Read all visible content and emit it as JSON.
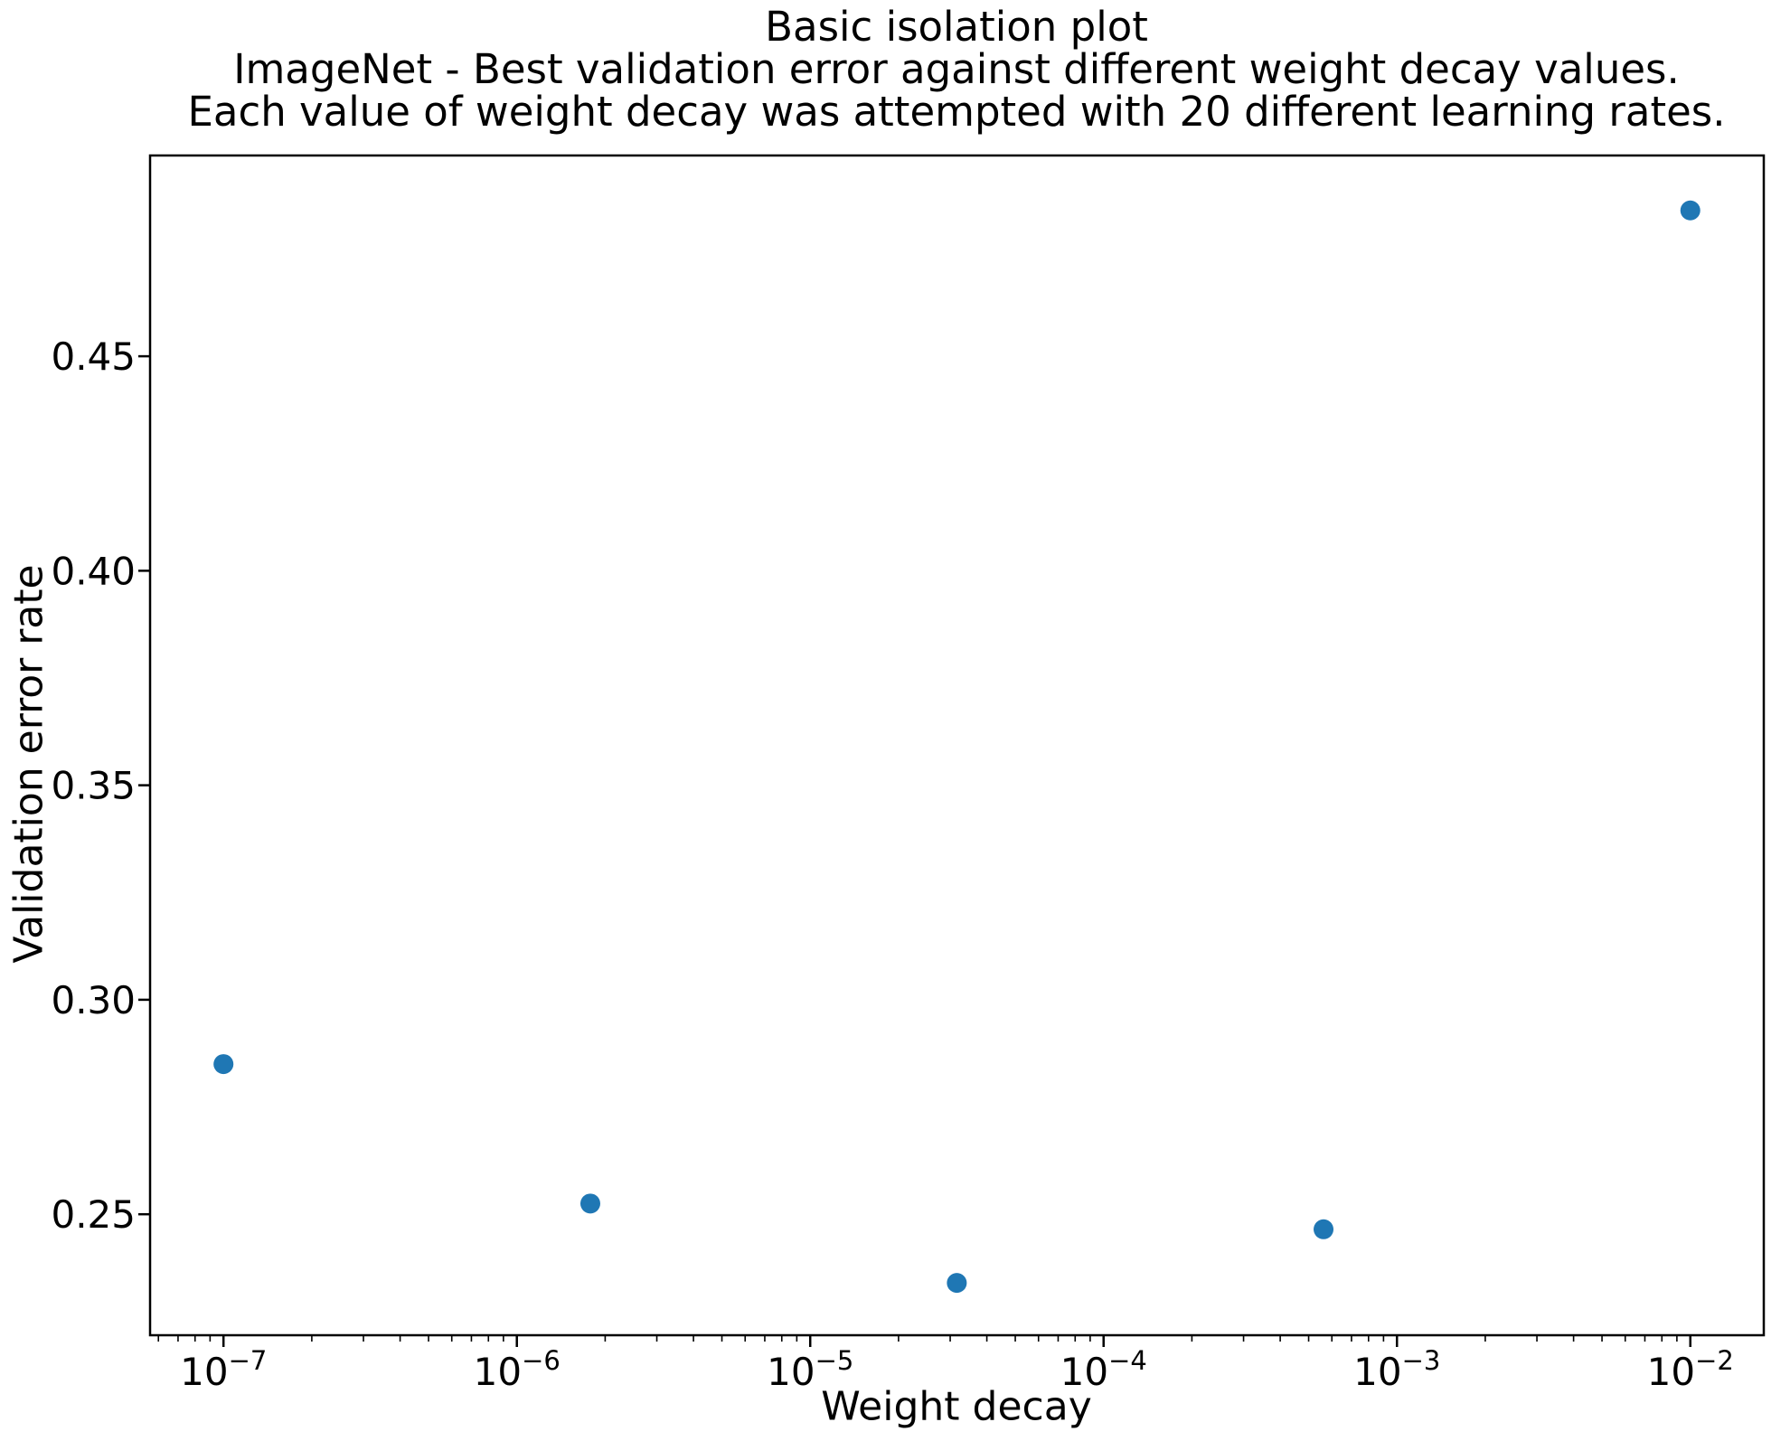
{
  "title": {
    "line1": "Basic isolation plot",
    "line2": "ImageNet - Best validation error against different weight decay values.",
    "line3": "Each value of weight decay was attempted with 20 different learning rates."
  },
  "chart_data": {
    "type": "scatter",
    "title": "Basic isolation plot",
    "subtitle": "ImageNet - Best validation error against different weight decay values. Each value of weight decay was attempted with 20 different learning rates.",
    "xlabel": "Weight decay",
    "ylabel": "Validation error rate",
    "x_scale": "log",
    "grid": false,
    "x": [
      1e-07,
      1.78e-06,
      3.16e-05,
      0.000562,
      0.01
    ],
    "y": [
      0.285,
      0.2525,
      0.234,
      0.2465,
      0.484
    ],
    "xlim": [
      5.62e-08,
      0.0178
    ],
    "ylim": [
      0.2218,
      0.4968
    ],
    "y_ticks": [
      "0.25",
      "0.30",
      "0.35",
      "0.40",
      "0.45"
    ],
    "y_tick_values": [
      0.25,
      0.3,
      0.35,
      0.4,
      0.45
    ],
    "x_tick_base": "10",
    "x_tick_exponents": [
      -7,
      -6,
      -5,
      -4,
      -3,
      -2
    ],
    "marker_color": "#1f77b4",
    "axis_color": "#000000",
    "background_color": "#ffffff"
  }
}
